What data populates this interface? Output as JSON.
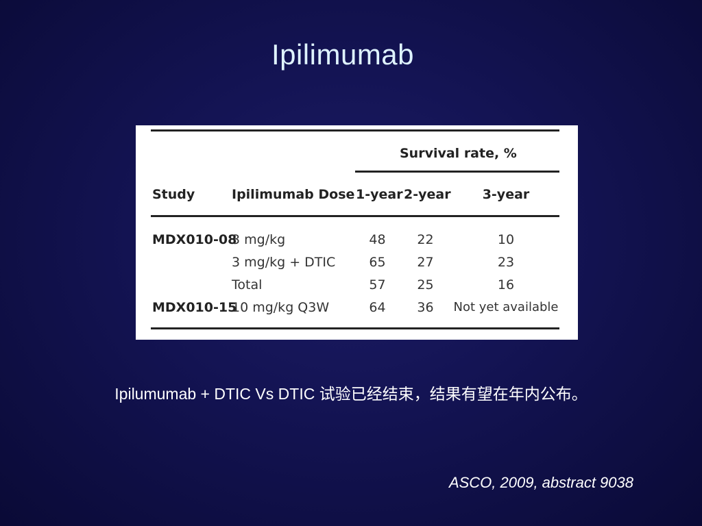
{
  "slide": {
    "title": "Ipilimumab",
    "caption": "Ipilumumab + DTIC Vs DTIC 试验已经结束，结果有望在年内公布。",
    "source": "ASCO, 2009, abstract 9038"
  },
  "table": {
    "group_header": "Survival rate, %",
    "headers": {
      "study": "Study",
      "dose": "Ipilimumab Dose",
      "y1": "1-year",
      "y2": "2-year",
      "y3": "3-year"
    },
    "rows": [
      {
        "study": "MDX010-08",
        "dose": "3 mg/kg",
        "y1": "48",
        "y2": "22",
        "y3": "10"
      },
      {
        "study": "",
        "dose": "3 mg/kg + DTIC",
        "y1": "65",
        "y2": "27",
        "y3": "23"
      },
      {
        "study": "",
        "dose": "Total",
        "y1": "57",
        "y2": "25",
        "y3": "16"
      },
      {
        "study": "MDX010-15",
        "dose": "10 mg/kg Q3W",
        "y1": "64",
        "y2": "36",
        "y3": "Not yet available"
      }
    ]
  }
}
